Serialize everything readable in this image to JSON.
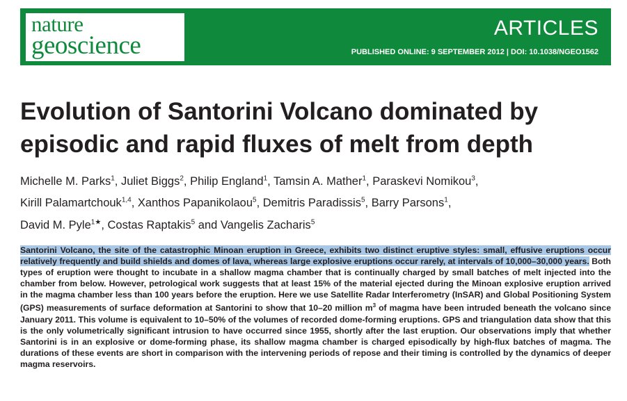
{
  "journal": {
    "name_line1": "nature",
    "name_line2": "geoscience",
    "section": "ARTICLES",
    "published": "PUBLISHED ONLINE: 9 SEPTEMBER 2012",
    "separator": " | ",
    "doi": "DOI: 10.1038/NGEO1562"
  },
  "title": "Evolution of Santorini Volcano dominated by episodic and rapid fluxes of melt from depth",
  "authors": [
    {
      "name": "Michelle M. Parks",
      "aff": "1",
      "sep": ", "
    },
    {
      "name": "Juliet Biggs",
      "aff": "2",
      "sep": ", "
    },
    {
      "name": "Philip England",
      "aff": "1",
      "sep": ", "
    },
    {
      "name": "Tamsin A. Mather",
      "aff": "1",
      "sep": ", "
    },
    {
      "name": "Paraskevi Nomikou",
      "aff": "3",
      "sep": ", "
    },
    {
      "name": "Kirill Palamartchouk",
      "aff": "1,4",
      "sep": ", "
    },
    {
      "name": "Xanthos Papanikolaou",
      "aff": "5",
      "sep": ", "
    },
    {
      "name": "Demitris Paradissis",
      "aff": "5",
      "sep": ", "
    },
    {
      "name": "Barry Parsons",
      "aff": "1",
      "sep": ", "
    },
    {
      "name": "David M. Pyle",
      "aff": "1★",
      "sep": ", "
    },
    {
      "name": "Costas Raptakis",
      "aff": "5",
      "sep": " and "
    },
    {
      "name": "Vangelis Zacharis",
      "aff": "5",
      "sep": ""
    }
  ],
  "abstract": {
    "highlighted": "Santorini Volcano, the site of the catastrophic Minoan eruption in Greece, exhibits two distinct eruptive styles: small, effusive eruptions occur relatively frequently and build shields and domes of lava, whereas large explosive eruptions occur rarely, at intervals of 10,000–30,000 years.",
    "part1": " Both types of eruption were thought to incubate in a shallow magma chamber that is continually charged by small batches of melt injected into the chamber from below. However, petrological work suggests that at least 15% of the material ejected during the Minoan explosive eruption arrived in the magma chamber less than 100 years before the eruption. Here we use Satellite Radar Interferometry (InSAR) and Global Positioning System (GPS) measurements of surface deformation at Santorini to show that 10–20 million m",
    "sup": "3",
    "part2": " of magma have been intruded beneath the volcano since January 2011. This volume is equivalent to 10–50% of the volumes of recorded dome-forming eruptions. GPS and triangulation data show that this is the only volumetrically significant intrusion to have occurred since 1955, shortly after the last eruption. Our observations imply that whether Santorini is in an explosive or dome-forming phase, its shallow magma chamber is charged episodically by high-flux batches of magma. The durations of these events are short in comparison with the intervening periods of repose and their timing is controlled by the dynamics of deeper magma reservoirs."
  },
  "colors": {
    "brand_green": "#0f8a3c",
    "highlight": "#a9c7e6",
    "text": "#231f20"
  }
}
